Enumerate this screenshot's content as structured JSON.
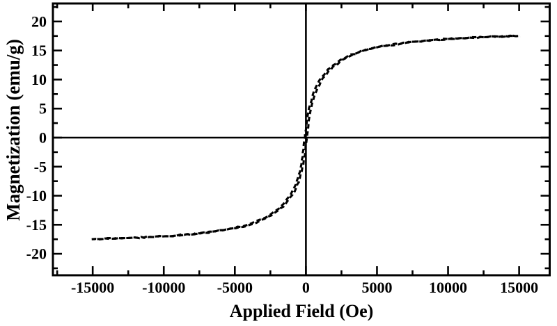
{
  "chart_data": {
    "type": "line",
    "title": "",
    "xlabel": "Applied Field (Oe)",
    "ylabel": "Magnetization (emu/g)",
    "xlim": [
      -17800,
      17150
    ],
    "ylim": [
      -23.7,
      23.1
    ],
    "x_major_ticks": [
      -15000,
      -10000,
      -5000,
      0,
      5000,
      10000,
      15000
    ],
    "x_tick_labels": [
      "-15000",
      "-10000",
      "-5000",
      "0",
      "5000",
      "10000",
      "15000"
    ],
    "x_minor_step": 2500,
    "y_major_ticks": [
      -20,
      -15,
      -10,
      -5,
      0,
      5,
      10,
      15,
      20
    ],
    "y_tick_labels": [
      "-20",
      "-15",
      "-10",
      "-5",
      "0",
      "5",
      "10",
      "15",
      "20"
    ],
    "y_minor_step": 2.5,
    "grid": false,
    "axes_through_origin": true,
    "background_color": "#ffffff",
    "line": {
      "style": "dashed",
      "color": "#000000",
      "width": 3.1,
      "dash": "6.5 4"
    },
    "series": [
      {
        "name": "magnetization",
        "x": [
          -15000,
          -12500,
          -10000,
          -7500,
          -5000,
          -4000,
          -3000,
          -2500,
          -2000,
          -1500,
          -1000,
          -750,
          -500,
          -250,
          -100,
          0,
          100,
          250,
          500,
          750,
          1000,
          1500,
          2000,
          2500,
          3000,
          4000,
          5000,
          7500,
          10000,
          12500,
          15000
        ],
        "y": [
          -17.5,
          -17.3,
          -17.0,
          -16.5,
          -15.6,
          -15.0,
          -14.0,
          -13.4,
          -12.5,
          -11.4,
          -9.8,
          -8.6,
          -7.0,
          -4.6,
          -2.0,
          0,
          2.0,
          4.6,
          7.0,
          8.6,
          9.8,
          11.4,
          12.5,
          13.4,
          14.0,
          15.0,
          15.6,
          16.5,
          17.0,
          17.3,
          17.5
        ]
      }
    ],
    "saturation_magnetization_emu_per_g": 17.5
  }
}
